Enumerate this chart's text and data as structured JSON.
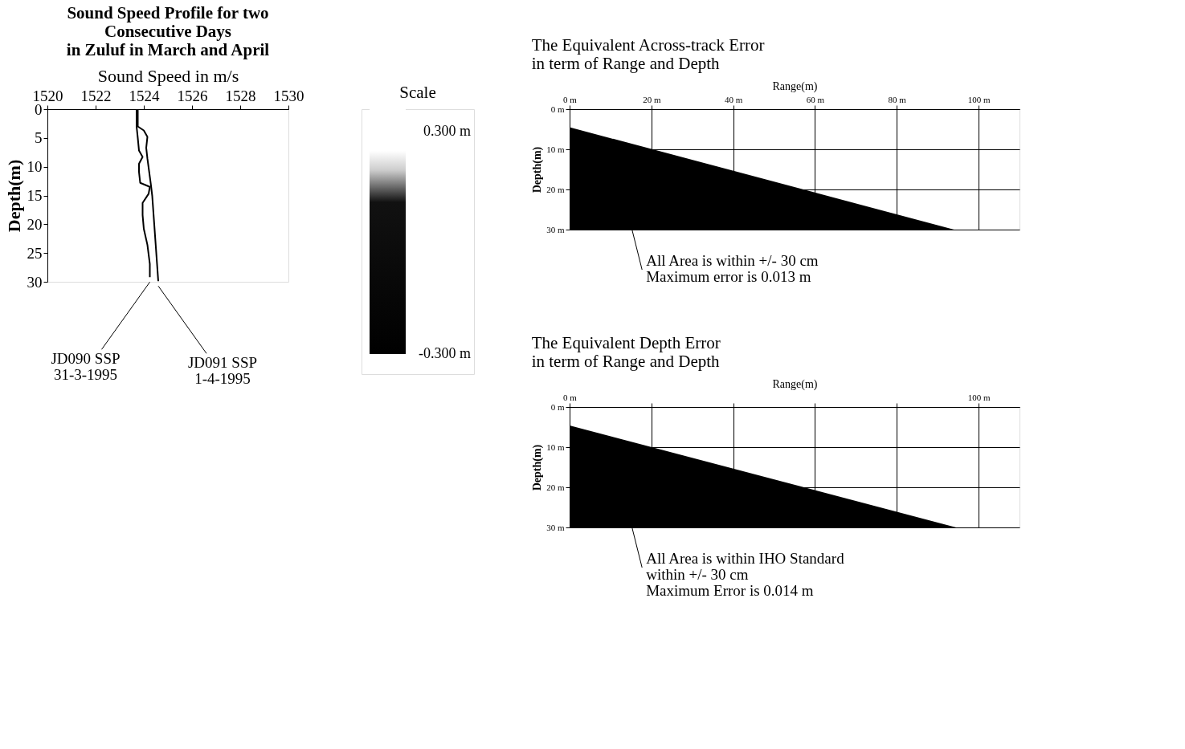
{
  "chart_data": [
    {
      "type": "line",
      "title": "Sound Speed Profile for two\nConsecutive Days\nin Zuluf in March and April",
      "xlabel": "Sound Speed in m/s",
      "ylabel": "Depth(m)",
      "series": [
        {
          "color": "#000000",
          "x": [
            1523.7,
            1523.7,
            1523.75,
            1523.8,
            1523.95,
            1523.8,
            1523.8,
            1523.85,
            1524.25,
            1524.2,
            1523.95,
            1523.95,
            1524.0,
            1524.15,
            1524.25,
            1524.25
          ],
          "values": [
            0,
            3,
            5,
            7.2,
            8.3,
            9.5,
            10.9,
            12.8,
            13.5,
            14.7,
            16.3,
            18.4,
            20.8,
            23.6,
            26.9,
            29.2
          ]
        },
        {
          "color": "#000000",
          "x": [
            1523.75,
            1523.75,
            1524.0,
            1524.15,
            1524.1,
            1524.15,
            1524.3,
            1524.35,
            1524.6
          ],
          "values": [
            0,
            3,
            3.7,
            4.8,
            6.7,
            8.6,
            13.3,
            15.1,
            29.9
          ]
        }
      ],
      "xlim": [
        1520,
        1530
      ],
      "xticks": [
        1520,
        1522,
        1524,
        1526,
        1528,
        1530
      ],
      "ylim": [
        30,
        0
      ],
      "yticks": [
        0,
        5,
        10,
        15,
        20,
        25,
        30
      ],
      "grid": false,
      "legend": false,
      "marker": "none",
      "line_style": "solid",
      "annotations": [
        {
          "text": "JD090 SSP\n31-3-1995",
          "x": 1524.25,
          "y": 29.2
        },
        {
          "text": "JD091 SSP\n1-4-1995",
          "x": 1524.6,
          "y": 29.9
        }
      ]
    },
    {
      "type": "other",
      "title": "Scale",
      "annotations": [
        "0.300 m",
        "-0.300 m"
      ]
    },
    {
      "type": "area",
      "title": "The Equivalent Across-track Error\nin term of Range and Depth",
      "xlabel": "Range(m)",
      "ylabel": "Depth(m)",
      "x": [
        0,
        94
      ],
      "values": [
        4.5,
        30
      ],
      "color": "#000000",
      "xlim": [
        0,
        110
      ],
      "xticks": [
        {
          "value": 0,
          "label": "0 m"
        },
        {
          "value": 20,
          "label": "20 m"
        },
        {
          "value": 40,
          "label": "40 m"
        },
        {
          "value": 60,
          "label": "60 m"
        },
        {
          "value": 80,
          "label": "80 m"
        },
        {
          "value": 100,
          "label": "100 m"
        }
      ],
      "ylim": [
        30,
        0
      ],
      "yticks": [
        {
          "value": 0,
          "label": "0 m"
        },
        {
          "value": 10,
          "label": "10 m"
        },
        {
          "value": 20,
          "label": "20 m"
        },
        {
          "value": 30,
          "label": "30 m"
        }
      ],
      "grid": true,
      "annotations": [
        "All Area is within  +/- 30 cm\nMaximum error is 0.013 m"
      ]
    },
    {
      "type": "area",
      "title": "The Equivalent Depth Error\nin term of Range and Depth",
      "xlabel": "Range(m)",
      "ylabel": "Depth(m)",
      "x": [
        0,
        94.5
      ],
      "values": [
        4.6,
        30
      ],
      "color": "#000000",
      "xlim": [
        0,
        110
      ],
      "xticks": [
        {
          "value": 0,
          "label": "0 m"
        },
        {
          "value": 20,
          "label": null
        },
        {
          "value": 40,
          "label": null
        },
        {
          "value": 60,
          "label": null
        },
        {
          "value": 80,
          "label": null
        },
        {
          "value": 100,
          "label": "100 m"
        }
      ],
      "ylim": [
        30,
        0
      ],
      "yticks": [
        {
          "value": 0,
          "label": "0 m"
        },
        {
          "value": 10,
          "label": "10 m"
        },
        {
          "value": 20,
          "label": "20 m"
        },
        {
          "value": 30,
          "label": "30 m"
        }
      ],
      "grid": true,
      "annotations": [
        "All Area is within IHO Standard\nwithin +/- 30 cm\nMaximum Error is 0.014 m"
      ]
    }
  ]
}
